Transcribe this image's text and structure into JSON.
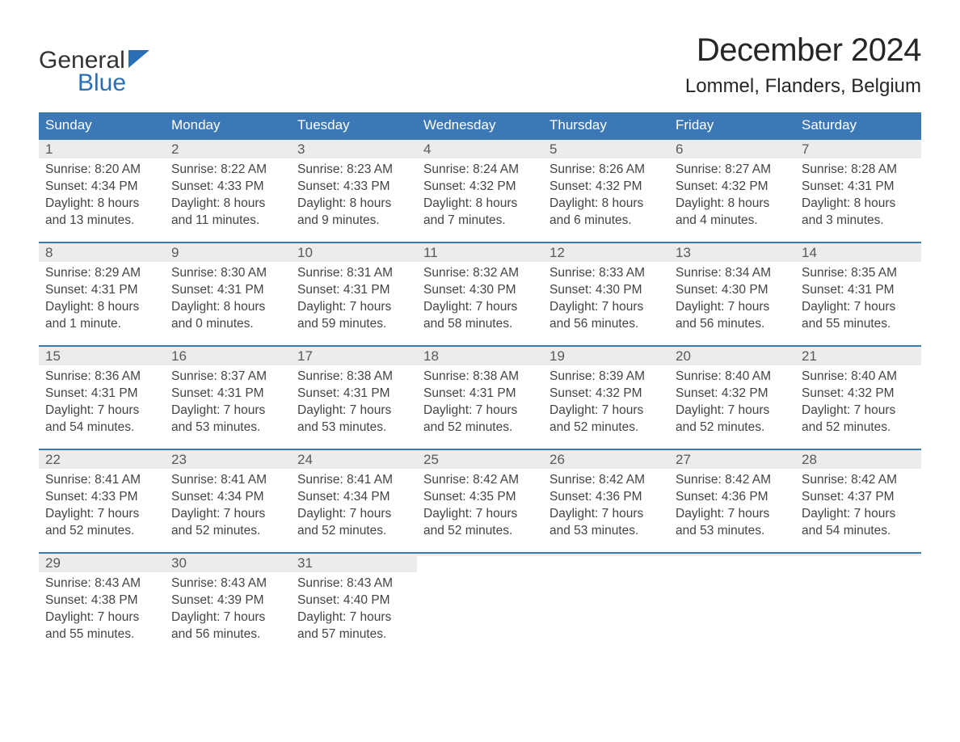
{
  "logo": {
    "general": "General",
    "blue": "Blue",
    "icon_color": "#2a6fb5"
  },
  "header": {
    "month_title": "December 2024",
    "location": "Lommel, Flanders, Belgium"
  },
  "colors": {
    "header_bg": "#3b78b5",
    "header_text": "#ffffff",
    "daynum_bg": "#ececec",
    "daynum_border": "#3b78b5",
    "daynum_text": "#595959",
    "body_text": "#444444",
    "background": "#ffffff"
  },
  "days_of_week": [
    "Sunday",
    "Monday",
    "Tuesday",
    "Wednesday",
    "Thursday",
    "Friday",
    "Saturday"
  ],
  "weeks": [
    [
      {
        "n": "1",
        "sunrise": "Sunrise: 8:20 AM",
        "sunset": "Sunset: 4:34 PM",
        "day1": "Daylight: 8 hours",
        "day2": "and 13 minutes."
      },
      {
        "n": "2",
        "sunrise": "Sunrise: 8:22 AM",
        "sunset": "Sunset: 4:33 PM",
        "day1": "Daylight: 8 hours",
        "day2": "and 11 minutes."
      },
      {
        "n": "3",
        "sunrise": "Sunrise: 8:23 AM",
        "sunset": "Sunset: 4:33 PM",
        "day1": "Daylight: 8 hours",
        "day2": "and 9 minutes."
      },
      {
        "n": "4",
        "sunrise": "Sunrise: 8:24 AM",
        "sunset": "Sunset: 4:32 PM",
        "day1": "Daylight: 8 hours",
        "day2": "and 7 minutes."
      },
      {
        "n": "5",
        "sunrise": "Sunrise: 8:26 AM",
        "sunset": "Sunset: 4:32 PM",
        "day1": "Daylight: 8 hours",
        "day2": "and 6 minutes."
      },
      {
        "n": "6",
        "sunrise": "Sunrise: 8:27 AM",
        "sunset": "Sunset: 4:32 PM",
        "day1": "Daylight: 8 hours",
        "day2": "and 4 minutes."
      },
      {
        "n": "7",
        "sunrise": "Sunrise: 8:28 AM",
        "sunset": "Sunset: 4:31 PM",
        "day1": "Daylight: 8 hours",
        "day2": "and 3 minutes."
      }
    ],
    [
      {
        "n": "8",
        "sunrise": "Sunrise: 8:29 AM",
        "sunset": "Sunset: 4:31 PM",
        "day1": "Daylight: 8 hours",
        "day2": "and 1 minute."
      },
      {
        "n": "9",
        "sunrise": "Sunrise: 8:30 AM",
        "sunset": "Sunset: 4:31 PM",
        "day1": "Daylight: 8 hours",
        "day2": "and 0 minutes."
      },
      {
        "n": "10",
        "sunrise": "Sunrise: 8:31 AM",
        "sunset": "Sunset: 4:31 PM",
        "day1": "Daylight: 7 hours",
        "day2": "and 59 minutes."
      },
      {
        "n": "11",
        "sunrise": "Sunrise: 8:32 AM",
        "sunset": "Sunset: 4:30 PM",
        "day1": "Daylight: 7 hours",
        "day2": "and 58 minutes."
      },
      {
        "n": "12",
        "sunrise": "Sunrise: 8:33 AM",
        "sunset": "Sunset: 4:30 PM",
        "day1": "Daylight: 7 hours",
        "day2": "and 56 minutes."
      },
      {
        "n": "13",
        "sunrise": "Sunrise: 8:34 AM",
        "sunset": "Sunset: 4:30 PM",
        "day1": "Daylight: 7 hours",
        "day2": "and 56 minutes."
      },
      {
        "n": "14",
        "sunrise": "Sunrise: 8:35 AM",
        "sunset": "Sunset: 4:31 PM",
        "day1": "Daylight: 7 hours",
        "day2": "and 55 minutes."
      }
    ],
    [
      {
        "n": "15",
        "sunrise": "Sunrise: 8:36 AM",
        "sunset": "Sunset: 4:31 PM",
        "day1": "Daylight: 7 hours",
        "day2": "and 54 minutes."
      },
      {
        "n": "16",
        "sunrise": "Sunrise: 8:37 AM",
        "sunset": "Sunset: 4:31 PM",
        "day1": "Daylight: 7 hours",
        "day2": "and 53 minutes."
      },
      {
        "n": "17",
        "sunrise": "Sunrise: 8:38 AM",
        "sunset": "Sunset: 4:31 PM",
        "day1": "Daylight: 7 hours",
        "day2": "and 53 minutes."
      },
      {
        "n": "18",
        "sunrise": "Sunrise: 8:38 AM",
        "sunset": "Sunset: 4:31 PM",
        "day1": "Daylight: 7 hours",
        "day2": "and 52 minutes."
      },
      {
        "n": "19",
        "sunrise": "Sunrise: 8:39 AM",
        "sunset": "Sunset: 4:32 PM",
        "day1": "Daylight: 7 hours",
        "day2": "and 52 minutes."
      },
      {
        "n": "20",
        "sunrise": "Sunrise: 8:40 AM",
        "sunset": "Sunset: 4:32 PM",
        "day1": "Daylight: 7 hours",
        "day2": "and 52 minutes."
      },
      {
        "n": "21",
        "sunrise": "Sunrise: 8:40 AM",
        "sunset": "Sunset: 4:32 PM",
        "day1": "Daylight: 7 hours",
        "day2": "and 52 minutes."
      }
    ],
    [
      {
        "n": "22",
        "sunrise": "Sunrise: 8:41 AM",
        "sunset": "Sunset: 4:33 PM",
        "day1": "Daylight: 7 hours",
        "day2": "and 52 minutes."
      },
      {
        "n": "23",
        "sunrise": "Sunrise: 8:41 AM",
        "sunset": "Sunset: 4:34 PM",
        "day1": "Daylight: 7 hours",
        "day2": "and 52 minutes."
      },
      {
        "n": "24",
        "sunrise": "Sunrise: 8:41 AM",
        "sunset": "Sunset: 4:34 PM",
        "day1": "Daylight: 7 hours",
        "day2": "and 52 minutes."
      },
      {
        "n": "25",
        "sunrise": "Sunrise: 8:42 AM",
        "sunset": "Sunset: 4:35 PM",
        "day1": "Daylight: 7 hours",
        "day2": "and 52 minutes."
      },
      {
        "n": "26",
        "sunrise": "Sunrise: 8:42 AM",
        "sunset": "Sunset: 4:36 PM",
        "day1": "Daylight: 7 hours",
        "day2": "and 53 minutes."
      },
      {
        "n": "27",
        "sunrise": "Sunrise: 8:42 AM",
        "sunset": "Sunset: 4:36 PM",
        "day1": "Daylight: 7 hours",
        "day2": "and 53 minutes."
      },
      {
        "n": "28",
        "sunrise": "Sunrise: 8:42 AM",
        "sunset": "Sunset: 4:37 PM",
        "day1": "Daylight: 7 hours",
        "day2": "and 54 minutes."
      }
    ],
    [
      {
        "n": "29",
        "sunrise": "Sunrise: 8:43 AM",
        "sunset": "Sunset: 4:38 PM",
        "day1": "Daylight: 7 hours",
        "day2": "and 55 minutes."
      },
      {
        "n": "30",
        "sunrise": "Sunrise: 8:43 AM",
        "sunset": "Sunset: 4:39 PM",
        "day1": "Daylight: 7 hours",
        "day2": "and 56 minutes."
      },
      {
        "n": "31",
        "sunrise": "Sunrise: 8:43 AM",
        "sunset": "Sunset: 4:40 PM",
        "day1": "Daylight: 7 hours",
        "day2": "and 57 minutes."
      },
      {
        "empty": true,
        "n": "",
        "sunrise": "",
        "sunset": "",
        "day1": "",
        "day2": ""
      },
      {
        "empty": true,
        "n": "",
        "sunrise": "",
        "sunset": "",
        "day1": "",
        "day2": ""
      },
      {
        "empty": true,
        "n": "",
        "sunrise": "",
        "sunset": "",
        "day1": "",
        "day2": ""
      },
      {
        "empty": true,
        "n": "",
        "sunrise": "",
        "sunset": "",
        "day1": "",
        "day2": ""
      }
    ]
  ]
}
